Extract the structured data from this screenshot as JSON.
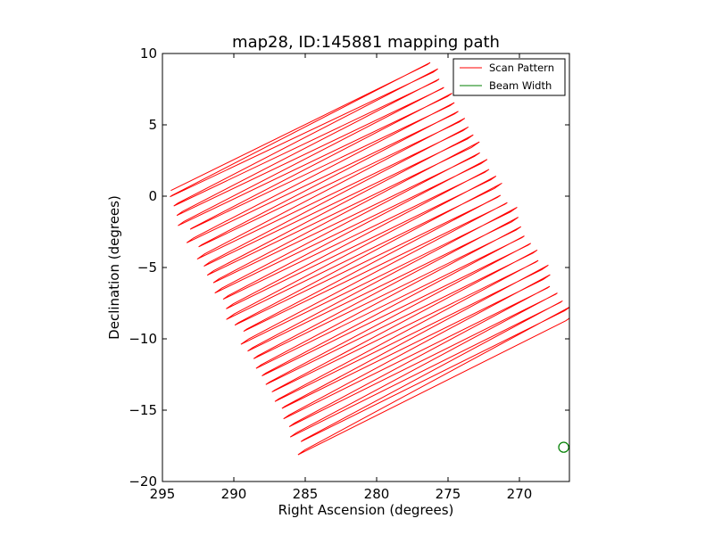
{
  "chart_data": {
    "type": "line",
    "title": "map28, ID:145881 mapping path",
    "xlabel": "Right Ascension (degrees)",
    "ylabel": "Declination (degrees)",
    "xlim": [
      295,
      266.5
    ],
    "ylim": [
      -20,
      10
    ],
    "xticks": [
      295,
      290,
      285,
      280,
      275,
      270
    ],
    "yticks": [
      10,
      5,
      0,
      -5,
      -10,
      -15,
      -20
    ],
    "xtick_labels": [
      "295",
      "290",
      "285",
      "280",
      "275",
      "270"
    ],
    "ytick_labels": [
      "10",
      "5",
      "0",
      "−5",
      "−10",
      "−15",
      "−20"
    ],
    "legend": {
      "location": "upper right",
      "entries": [
        {
          "label": "Scan Pattern",
          "color": "#ff0000"
        },
        {
          "label": "Beam Width",
          "color": "#007f00"
        }
      ]
    },
    "scan_pattern": {
      "color": "#ff0000",
      "corners": {
        "top_left": [
          294.6,
          0.3
        ],
        "top_right": [
          276.3,
          9.3
        ],
        "bottom_left": [
          284.9,
          -18.1
        ],
        "bottom_right": [
          266.5,
          -8.6
        ]
      },
      "num_scan_lines": 62
    },
    "beam_width": {
      "color": "#007f00",
      "center": [
        266.9,
        -17.6
      ],
      "radius_deg": 0.35
    }
  }
}
